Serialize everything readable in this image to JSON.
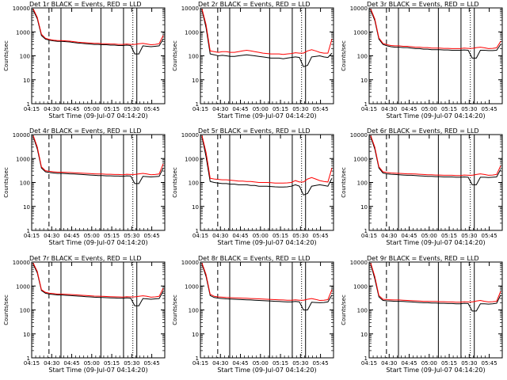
{
  "colors": {
    "events": "#000000",
    "lld": "#ff0000",
    "axes": "#000000"
  },
  "chart_data": [
    {
      "type": "line",
      "title": "Det 1r BLACK = Events, RED = LLD",
      "xlabel": "Start Time (09-Jul-07 04:14:20)",
      "ylabel": "Counts/sec",
      "xticks": [
        "04:15",
        "04:30",
        "04:45",
        "05:00",
        "05:15",
        "05:30",
        "05:45"
      ],
      "yticks": [
        "1",
        "10",
        "100",
        "1000",
        "10000"
      ],
      "ylim": [
        1,
        10000
      ],
      "yscale": "log",
      "series": [
        {
          "name": "Events",
          "values": [
            8000,
            3500,
            700,
            500,
            450,
            420,
            400,
            400,
            390,
            380,
            360,
            340,
            330,
            320,
            310,
            300,
            300,
            290,
            290,
            280,
            280,
            270,
            270,
            280,
            270,
            120,
            120,
            260,
            250,
            240,
            250,
            260,
            500
          ]
        },
        {
          "name": "LLD",
          "values": [
            9000,
            4000,
            800,
            540,
            480,
            450,
            430,
            430,
            420,
            410,
            390,
            370,
            360,
            350,
            340,
            330,
            330,
            320,
            320,
            310,
            310,
            300,
            300,
            310,
            300,
            300,
            320,
            330,
            310,
            290,
            300,
            320,
            700
          ]
        }
      ]
    },
    {
      "type": "line",
      "title": "Det 2r BLACK = Events, RED = LLD",
      "xlabel": "Start Time (09-Jul-07 04:14:20)",
      "ylabel": "Counts/sec",
      "xticks": [
        "04:15",
        "04:30",
        "04:45",
        "05:00",
        "05:15",
        "05:30",
        "05:45"
      ],
      "yticks": [
        "1",
        "10",
        "100",
        "1000",
        "10000"
      ],
      "ylim": [
        1,
        10000
      ],
      "yscale": "log",
      "series": [
        {
          "name": "Events",
          "values": [
            8000,
            1500,
            120,
            110,
            100,
            105,
            100,
            95,
            95,
            100,
            105,
            110,
            105,
            100,
            95,
            90,
            85,
            80,
            80,
            80,
            75,
            80,
            85,
            90,
            85,
            35,
            40,
            90,
            95,
            100,
            90,
            85,
            130
          ]
        },
        {
          "name": "LLD",
          "values": [
            9000,
            2000,
            160,
            150,
            140,
            150,
            150,
            140,
            140,
            150,
            160,
            170,
            160,
            150,
            140,
            130,
            125,
            120,
            120,
            120,
            115,
            120,
            125,
            135,
            130,
            130,
            160,
            180,
            160,
            140,
            130,
            130,
            500
          ]
        }
      ]
    },
    {
      "type": "line",
      "title": "Det 3r BLACK = Events, RED = LLD",
      "xlabel": "Start Time (09-Jul-07 04:14:20)",
      "ylabel": "Counts/sec",
      "xticks": [
        "04:15",
        "04:30",
        "04:45",
        "05:00",
        "05:15",
        "05:30",
        "05:45"
      ],
      "yticks": [
        "1",
        "10",
        "100",
        "1000",
        "10000"
      ],
      "ylim": [
        1,
        10000
      ],
      "yscale": "log",
      "series": [
        {
          "name": "Events",
          "values": [
            8000,
            3000,
            500,
            300,
            260,
            240,
            230,
            230,
            220,
            220,
            210,
            200,
            200,
            190,
            190,
            180,
            180,
            180,
            175,
            175,
            170,
            170,
            170,
            175,
            170,
            80,
            80,
            170,
            170,
            165,
            165,
            170,
            300
          ]
        },
        {
          "name": "LLD",
          "values": [
            9000,
            3500,
            560,
            330,
            290,
            270,
            260,
            260,
            250,
            250,
            240,
            230,
            230,
            220,
            220,
            210,
            210,
            210,
            205,
            205,
            200,
            200,
            200,
            210,
            205,
            205,
            220,
            230,
            215,
            200,
            205,
            215,
            400
          ]
        }
      ]
    },
    {
      "type": "line",
      "title": "Det 4r BLACK = Events, RED = LLD",
      "xlabel": "Start Time (09-Jul-07 04:14:20)",
      "ylabel": "Counts/sec",
      "xticks": [
        "04:15",
        "04:30",
        "04:45",
        "05:00",
        "05:15",
        "05:30",
        "05:45"
      ],
      "yticks": [
        "1",
        "10",
        "100",
        "1000",
        "10000"
      ],
      "ylim": [
        1,
        10000
      ],
      "yscale": "log",
      "series": [
        {
          "name": "Events",
          "values": [
            8000,
            2500,
            400,
            280,
            260,
            250,
            240,
            240,
            235,
            230,
            225,
            220,
            215,
            210,
            205,
            200,
            195,
            195,
            190,
            190,
            185,
            185,
            180,
            190,
            185,
            90,
            90,
            180,
            175,
            170,
            175,
            180,
            400
          ]
        },
        {
          "name": "LLD",
          "values": [
            9000,
            3000,
            450,
            310,
            290,
            280,
            270,
            270,
            265,
            260,
            255,
            250,
            245,
            240,
            235,
            230,
            225,
            225,
            220,
            220,
            215,
            215,
            210,
            220,
            215,
            215,
            230,
            240,
            225,
            210,
            215,
            225,
            600
          ]
        }
      ]
    },
    {
      "type": "line",
      "title": "Det 5r BLACK = Events, RED = LLD",
      "xlabel": "Start Time (09-Jul-07 04:14:20)",
      "ylabel": "Counts/sec",
      "xticks": [
        "04:15",
        "04:30",
        "04:45",
        "05:00",
        "05:15",
        "05:30",
        "05:45"
      ],
      "yticks": [
        "1",
        "10",
        "100",
        "1000",
        "10000"
      ],
      "ylim": [
        1,
        10000
      ],
      "yscale": "log",
      "series": [
        {
          "name": "Events",
          "values": [
            8000,
            1200,
            110,
            100,
            95,
            90,
            90,
            85,
            85,
            80,
            80,
            80,
            75,
            75,
            70,
            70,
            70,
            68,
            66,
            65,
            65,
            66,
            70,
            80,
            70,
            30,
            35,
            70,
            75,
            80,
            75,
            70,
            150
          ]
        },
        {
          "name": "LLD",
          "values": [
            9000,
            1800,
            150,
            140,
            135,
            130,
            130,
            125,
            120,
            115,
            115,
            110,
            110,
            105,
            100,
            100,
            100,
            98,
            95,
            95,
            95,
            96,
            100,
            120,
            105,
            105,
            140,
            160,
            140,
            120,
            110,
            105,
            400
          ]
        }
      ]
    },
    {
      "type": "line",
      "title": "Det 6r BLACK = Events, RED = LLD",
      "xlabel": "Start Time (09-Jul-07 04:14:20)",
      "ylabel": "Counts/sec",
      "xticks": [
        "04:15",
        "04:30",
        "04:45",
        "05:00",
        "05:15",
        "05:30",
        "05:45"
      ],
      "yticks": [
        "1",
        "10",
        "100",
        "1000",
        "10000"
      ],
      "ylim": [
        1,
        10000
      ],
      "yscale": "log",
      "series": [
        {
          "name": "Events",
          "values": [
            8000,
            2500,
            400,
            250,
            230,
            220,
            215,
            210,
            205,
            200,
            200,
            195,
            190,
            185,
            180,
            180,
            175,
            175,
            170,
            170,
            170,
            165,
            165,
            170,
            165,
            80,
            80,
            165,
            165,
            160,
            165,
            170,
            350
          ]
        },
        {
          "name": "LLD",
          "values": [
            9000,
            3000,
            450,
            280,
            260,
            250,
            245,
            240,
            235,
            230,
            230,
            225,
            220,
            215,
            210,
            210,
            205,
            205,
            200,
            200,
            200,
            195,
            195,
            205,
            200,
            200,
            215,
            230,
            215,
            200,
            205,
            215,
            500
          ]
        }
      ]
    },
    {
      "type": "line",
      "title": "Det 7r BLACK = Events, RED = LLD",
      "xlabel": "Start Time (09-Jul-07 04:14:20)",
      "ylabel": "Counts/sec",
      "xticks": [
        "04:15",
        "04:30",
        "04:45",
        "05:00",
        "05:15",
        "05:30",
        "05:45"
      ],
      "yticks": [
        "1",
        "10",
        "100",
        "1000",
        "10000"
      ],
      "ylim": [
        1,
        10000
      ],
      "yscale": "log",
      "series": [
        {
          "name": "Events",
          "values": [
            8000,
            3500,
            650,
            500,
            460,
            440,
            420,
            420,
            410,
            400,
            390,
            380,
            370,
            360,
            350,
            340,
            335,
            330,
            325,
            320,
            315,
            310,
            305,
            320,
            310,
            150,
            150,
            300,
            290,
            280,
            290,
            300,
            600
          ]
        },
        {
          "name": "LLD",
          "values": [
            9000,
            4000,
            700,
            540,
            500,
            480,
            460,
            460,
            450,
            440,
            430,
            420,
            410,
            400,
            390,
            380,
            375,
            370,
            365,
            360,
            355,
            350,
            345,
            360,
            350,
            350,
            370,
            390,
            370,
            340,
            350,
            370,
            800
          ]
        }
      ]
    },
    {
      "type": "line",
      "title": "Det 8r BLACK = Events, RED = LLD",
      "xlabel": "Start Time (09-Jul-07 04:14:20)",
      "ylabel": "Counts/sec",
      "xticks": [
        "04:15",
        "04:30",
        "04:45",
        "05:00",
        "05:15",
        "05:30",
        "05:45"
      ],
      "yticks": [
        "1",
        "10",
        "100",
        "1000",
        "10000"
      ],
      "ylim": [
        1,
        10000
      ],
      "yscale": "log",
      "series": [
        {
          "name": "Events",
          "values": [
            8000,
            2500,
            400,
            330,
            310,
            300,
            290,
            285,
            280,
            275,
            270,
            265,
            260,
            255,
            250,
            245,
            240,
            235,
            230,
            225,
            220,
            215,
            215,
            225,
            215,
            100,
            100,
            210,
            205,
            200,
            205,
            215,
            420
          ]
        },
        {
          "name": "LLD",
          "values": [
            9000,
            3000,
            450,
            370,
            350,
            340,
            330,
            325,
            320,
            315,
            310,
            305,
            300,
            295,
            290,
            285,
            280,
            275,
            270,
            265,
            260,
            255,
            255,
            265,
            255,
            255,
            280,
            300,
            275,
            250,
            255,
            270,
            700
          ]
        }
      ]
    },
    {
      "type": "line",
      "title": "Det 9r BLACK = Events, RED = LLD",
      "xlabel": "Start Time (09-Jul-07 04:14:20)",
      "ylabel": "Counts/sec",
      "xticks": [
        "04:15",
        "04:30",
        "04:45",
        "05:00",
        "05:15",
        "05:30",
        "05:45"
      ],
      "yticks": [
        "1",
        "10",
        "100",
        "1000",
        "10000"
      ],
      "ylim": [
        1,
        10000
      ],
      "yscale": "log",
      "series": [
        {
          "name": "Events",
          "values": [
            8000,
            2000,
            350,
            250,
            240,
            235,
            230,
            230,
            225,
            220,
            215,
            210,
            205,
            200,
            200,
            195,
            195,
            190,
            190,
            185,
            185,
            180,
            180,
            190,
            185,
            90,
            90,
            180,
            180,
            175,
            180,
            190,
            420
          ]
        },
        {
          "name": "LLD",
          "values": [
            9000,
            2500,
            400,
            280,
            270,
            265,
            260,
            260,
            255,
            250,
            245,
            240,
            235,
            230,
            230,
            225,
            225,
            220,
            220,
            215,
            215,
            210,
            210,
            220,
            215,
            215,
            235,
            250,
            230,
            215,
            220,
            230,
            600
          ]
        }
      ]
    }
  ]
}
